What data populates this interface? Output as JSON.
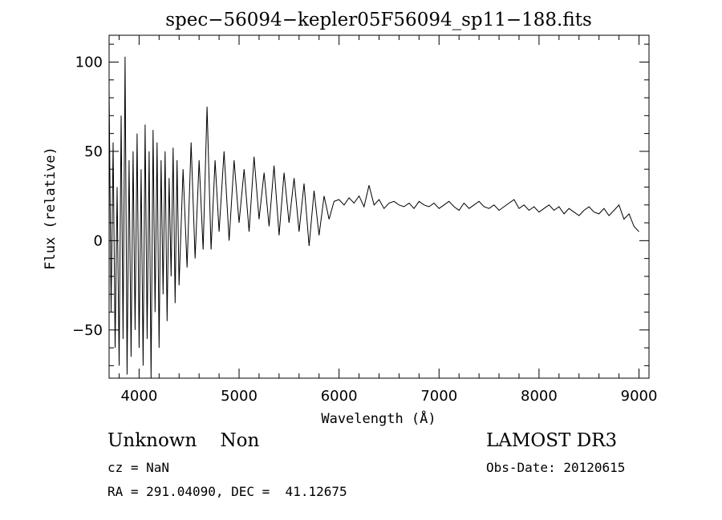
{
  "chart_data": {
    "type": "line",
    "title": "spec−56094−kepler05F56094_sp11−188.fits",
    "xlabel": "Wavelength (Å)",
    "ylabel": "Flux (relative)",
    "xlim": [
      3700,
      9100
    ],
    "ylim": [
      -77,
      115
    ],
    "xticks": [
      4000,
      5000,
      6000,
      7000,
      8000,
      9000
    ],
    "yticks": [
      -50,
      0,
      50,
      100
    ],
    "xtick_labels": [
      "4000",
      "5000",
      "6000",
      "7000",
      "8000",
      "9000"
    ],
    "ytick_labels": [
      "−50",
      "0",
      "50",
      "100"
    ],
    "grid": false,
    "series": [
      {
        "x": [
          3700,
          3720,
          3740,
          3760,
          3780,
          3800,
          3820,
          3840,
          3860,
          3880,
          3900,
          3920,
          3940,
          3960,
          3980,
          4000,
          4020,
          4040,
          4060,
          4080,
          4100,
          4120,
          4140,
          4160,
          4180,
          4200,
          4220,
          4240,
          4260,
          4280,
          4300,
          4320,
          4340,
          4360,
          4380,
          4400,
          4440,
          4480,
          4520,
          4560,
          4600,
          4640,
          4680,
          4720,
          4760,
          4800,
          4850,
          4900,
          4950,
          5000,
          5050,
          5100,
          5150,
          5200,
          5250,
          5300,
          5350,
          5400,
          5450,
          5500,
          5550,
          5600,
          5650,
          5700,
          5750,
          5800,
          5850,
          5900,
          5950,
          6000,
          6050,
          6100,
          6150,
          6200,
          6250,
          6300,
          6350,
          6400,
          6450,
          6500,
          6550,
          6600,
          6650,
          6700,
          6750,
          6800,
          6850,
          6900,
          6950,
          7000,
          7050,
          7100,
          7150,
          7200,
          7250,
          7300,
          7350,
          7400,
          7450,
          7500,
          7550,
          7600,
          7650,
          7700,
          7750,
          7800,
          7850,
          7900,
          7950,
          8000,
          8050,
          8100,
          8150,
          8200,
          8250,
          8300,
          8350,
          8400,
          8450,
          8500,
          8550,
          8600,
          8650,
          8700,
          8750,
          8800,
          8850,
          8900,
          8950,
          9000
        ],
        "y": [
          85,
          -40,
          55,
          -60,
          30,
          -70,
          70,
          -55,
          103,
          -75,
          45,
          -65,
          50,
          -50,
          60,
          -60,
          40,
          -70,
          65,
          -55,
          50,
          -77,
          62,
          -40,
          55,
          -60,
          45,
          -30,
          50,
          -45,
          35,
          -20,
          52,
          -35,
          45,
          -25,
          40,
          -15,
          55,
          -10,
          45,
          -5,
          75,
          -5,
          45,
          5,
          50,
          0,
          45,
          10,
          40,
          5,
          47,
          12,
          38,
          8,
          42,
          3,
          38,
          10,
          35,
          5,
          32,
          -3,
          28,
          3,
          25,
          12,
          22,
          23,
          20,
          24,
          21,
          25,
          19,
          31,
          20,
          23,
          18,
          21,
          22,
          20,
          19,
          21,
          18,
          22,
          20,
          19,
          21,
          18,
          20,
          22,
          19,
          17,
          21,
          18,
          20,
          22,
          19,
          18,
          20,
          17,
          19,
          21,
          23,
          18,
          20,
          17,
          19,
          16,
          18,
          20,
          17,
          19,
          15,
          18,
          16,
          14,
          17,
          19,
          16,
          15,
          18,
          14,
          17,
          20,
          12,
          15,
          8,
          5
        ]
      }
    ]
  },
  "info": {
    "classification": "Unknown    Non",
    "survey": "LAMOST DR3",
    "cz": "cz = NaN",
    "obs_date": "Obs-Date: 20120615",
    "coords": "RA = 291.04090, DEC =  41.12675"
  }
}
